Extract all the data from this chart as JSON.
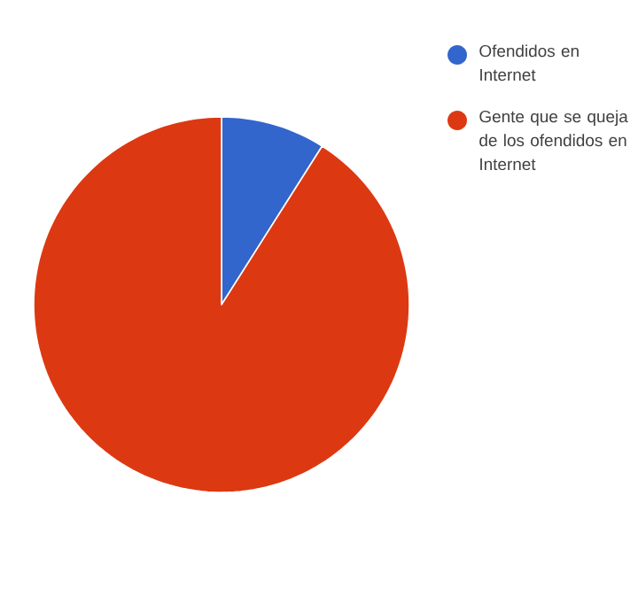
{
  "chart_data": {
    "type": "pie",
    "categories": [
      "Ofendidos en Internet",
      "Gente que se queja de los ofendidos en Internet"
    ],
    "values": [
      9,
      91
    ],
    "colors": [
      "#3366cc",
      "#dc3912"
    ],
    "legend": "top right"
  }
}
